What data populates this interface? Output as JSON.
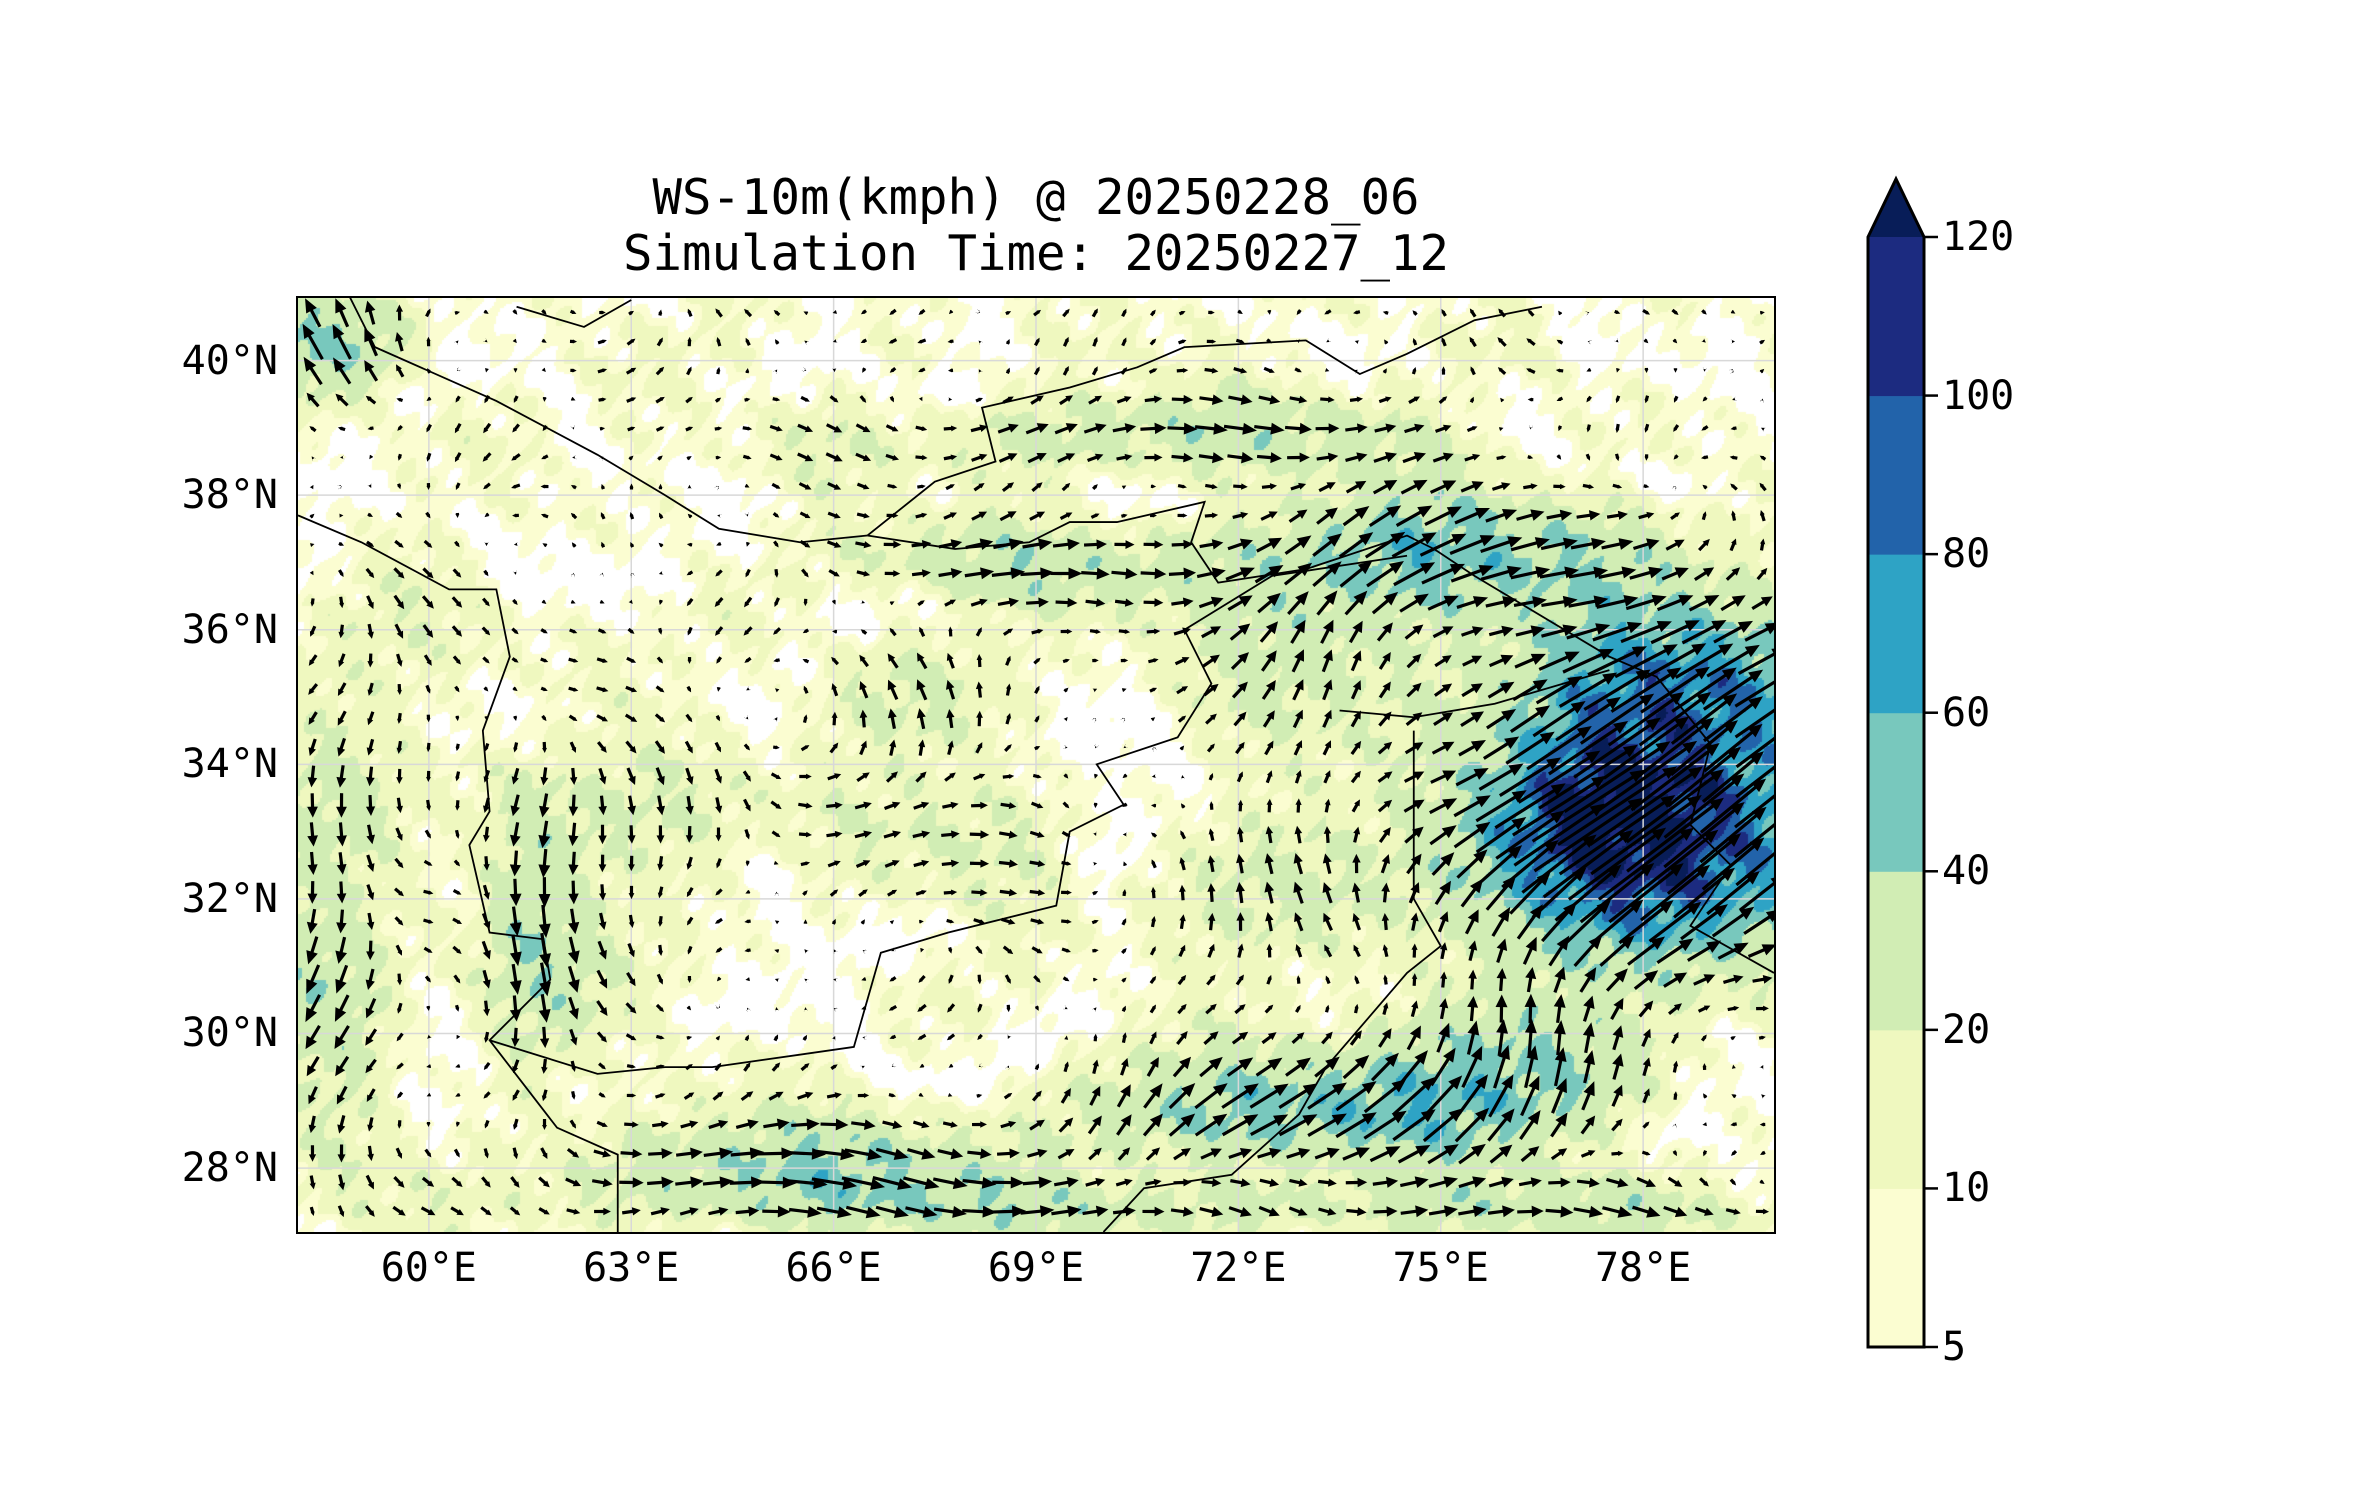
{
  "title": {
    "line1": "WS-10m(kmph) @ 20250228_06",
    "line2": "Simulation Time: 20250227_12"
  },
  "map": {
    "lon_range": [
      58.06,
      79.94
    ],
    "lat_range": [
      27.05,
      40.93
    ],
    "lat_ticks": [
      {
        "value": 40,
        "label": "40°N"
      },
      {
        "value": 38,
        "label": "38°N"
      },
      {
        "value": 36,
        "label": "36°N"
      },
      {
        "value": 34,
        "label": "34°N"
      },
      {
        "value": 32,
        "label": "32°N"
      },
      {
        "value": 30,
        "label": "30°N"
      },
      {
        "value": 28,
        "label": "28°N"
      }
    ],
    "lon_ticks": [
      {
        "value": 60,
        "label": "60°E"
      },
      {
        "value": 63,
        "label": "63°E"
      },
      {
        "value": 66,
        "label": "66°E"
      },
      {
        "value": 69,
        "label": "69°E"
      },
      {
        "value": 72,
        "label": "72°E"
      },
      {
        "value": 75,
        "label": "75°E"
      },
      {
        "value": 78,
        "label": "78°E"
      }
    ],
    "variable": "10 m wind speed (kmph) with wind vectors"
  },
  "colorbar": {
    "levels": [
      {
        "value": 5,
        "label": "5"
      },
      {
        "value": 10,
        "label": "10"
      },
      {
        "value": 20,
        "label": "20"
      },
      {
        "value": 40,
        "label": "40"
      },
      {
        "value": 60,
        "label": "60"
      },
      {
        "value": 80,
        "label": "80"
      },
      {
        "value": 100,
        "label": "100"
      },
      {
        "value": 120,
        "label": "120"
      }
    ],
    "colors": [
      "#fbfdd1",
      "#eff8bf",
      "#d1edb4",
      "#78c8bd",
      "#2ea3c5",
      "#2263aa",
      "#1c2b80"
    ],
    "under_color": "#ffffff",
    "over_color": "#081d58",
    "extend": "max"
  }
}
